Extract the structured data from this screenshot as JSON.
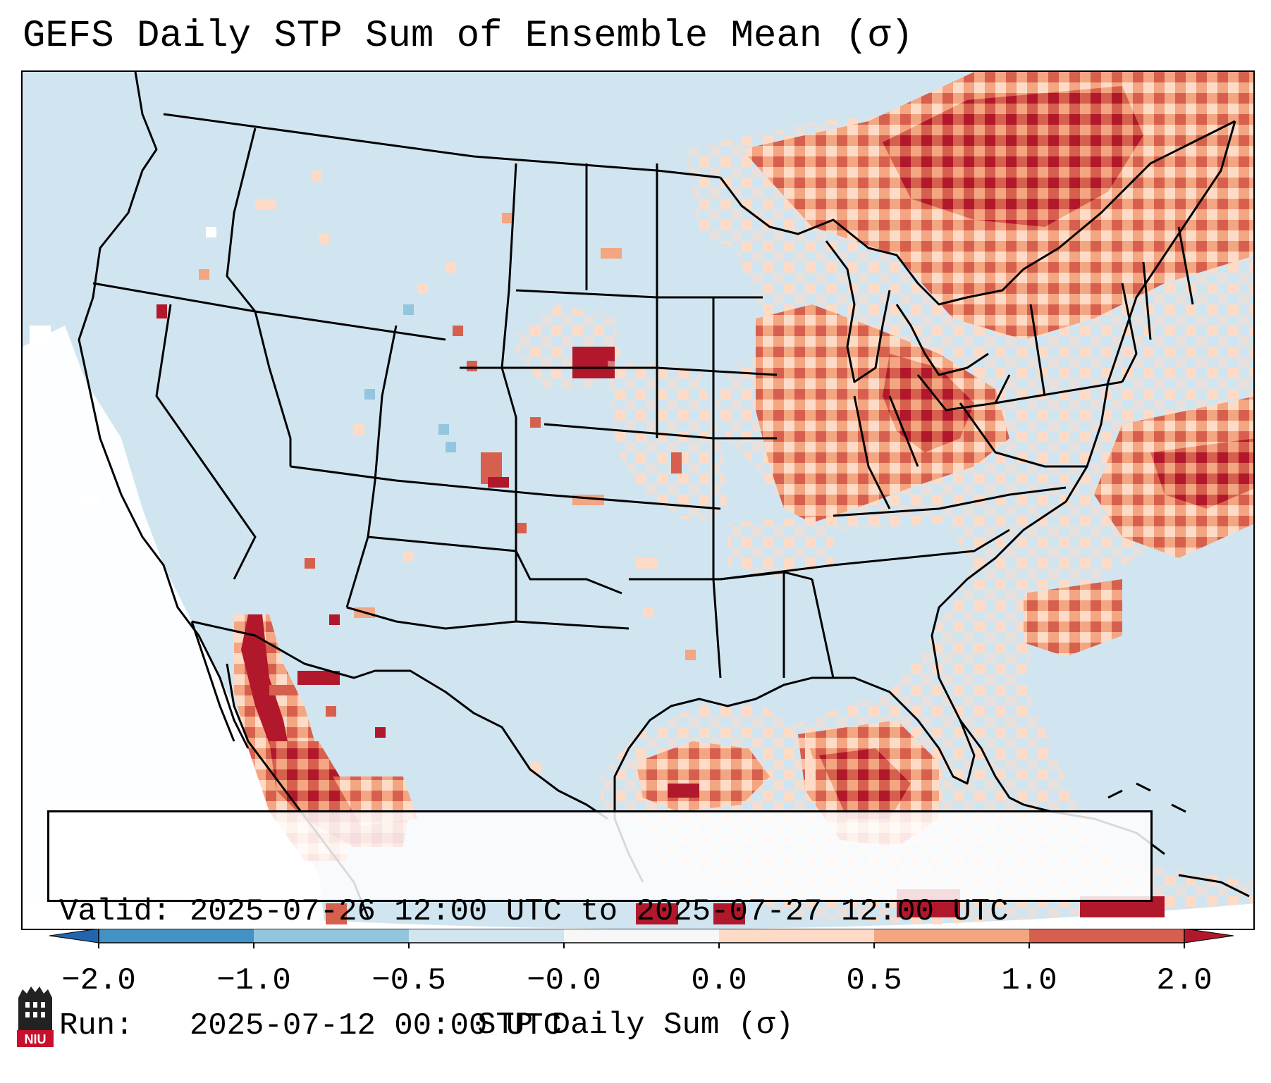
{
  "title": "GEFS Daily STP Sum of Ensemble Mean (σ)",
  "info": {
    "valid_line": "Valid: 2025-07-26 12:00 UTC to 2025-07-27 12:00 UTC",
    "run_line": "Run:   2025-07-12 00:00 UTC"
  },
  "colorbar": {
    "label": "STP Daily Sum (σ)",
    "ticks": [
      "−2.0",
      "−1.0",
      "−0.5",
      "−0.0",
      "0.0",
      "0.5",
      "1.0",
      "2.0"
    ],
    "bins": [
      {
        "from": -2.0,
        "to": -1.0,
        "color": "#4292c6"
      },
      {
        "from": -1.0,
        "to": -0.5,
        "color": "#92c5de"
      },
      {
        "from": -0.5,
        "to": -0.0,
        "color": "#d1e5f0"
      },
      {
        "from": -0.0,
        "to": 0.0,
        "color": "#f7f7f7"
      },
      {
        "from": 0.0,
        "to": 0.5,
        "color": "#fddbc7"
      },
      {
        "from": 0.5,
        "to": 1.0,
        "color": "#f4a582"
      },
      {
        "from": 1.0,
        "to": 2.0,
        "color": "#d6604d"
      }
    ],
    "under_color": "#2166ac",
    "over_color": "#b2182b"
  },
  "colors": {
    "ocean": "#d1e5f0",
    "light_pos": "#fddbc7",
    "mid_pos": "#f4a582",
    "high_pos": "#d6604d",
    "max_pos": "#b2182b",
    "neg": "#92c5de"
  },
  "logo": {
    "text": "NIU"
  }
}
